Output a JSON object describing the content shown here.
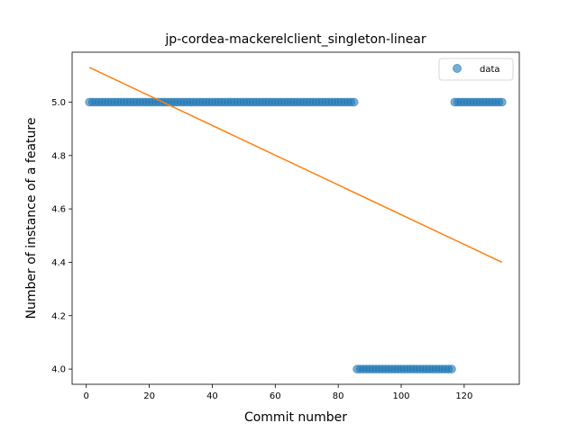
{
  "chart_data": {
    "type": "scatter",
    "title": "jp-cordea-mackerelclient_singleton-linear",
    "xlabel": "Commit number",
    "ylabel": "Number of instance of a feature",
    "xlim": [
      -4.5,
      137.5
    ],
    "ylim": [
      3.943,
      5.187
    ],
    "xticks": [
      0,
      20,
      40,
      60,
      80,
      100,
      120
    ],
    "yticks": [
      4.0,
      4.2,
      4.4,
      4.6,
      4.8,
      5.0
    ],
    "grid": false,
    "legend": {
      "placement": "top-right",
      "entries": [
        "data"
      ]
    },
    "series": [
      {
        "name": "data",
        "kind": "scatter",
        "color": "#1f77b4",
        "segments": [
          {
            "x_start": 1,
            "x_end": 85,
            "y": 5
          },
          {
            "x_start": 86,
            "x_end": 116,
            "y": 4
          },
          {
            "x_start": 117,
            "x_end": 132,
            "y": 5
          }
        ]
      },
      {
        "kind": "line",
        "color": "#ff7f0e",
        "x": [
          1,
          132
        ],
        "y": [
          5.13,
          4.4
        ]
      }
    ]
  }
}
